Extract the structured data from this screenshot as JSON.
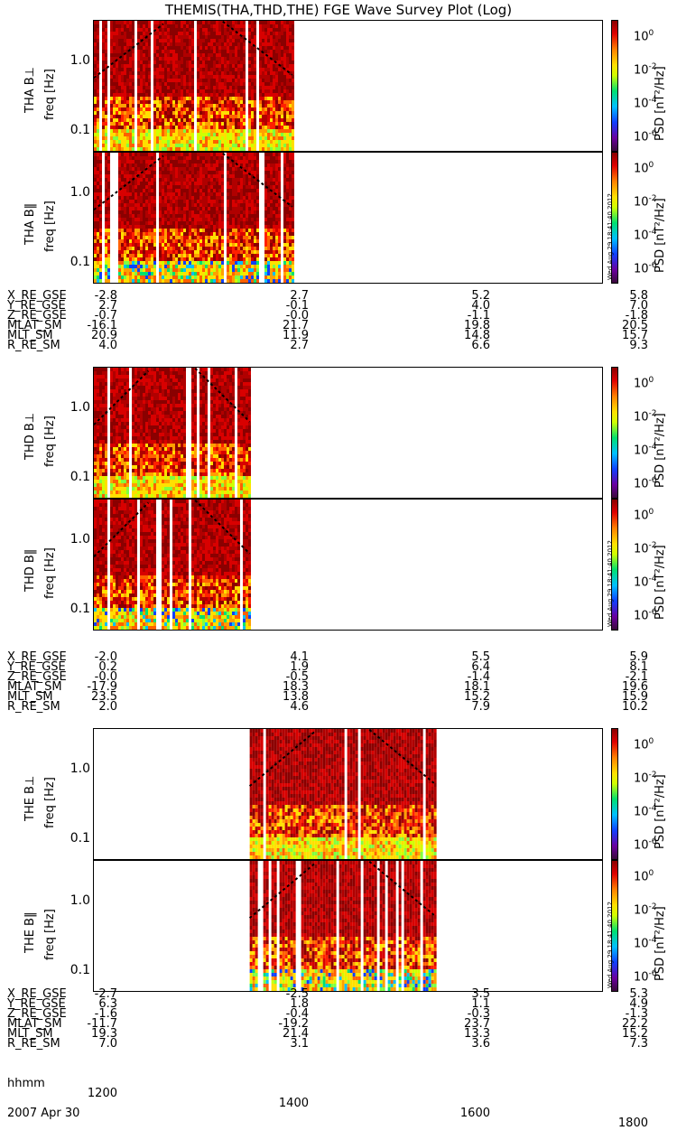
{
  "title": "THEMIS(THA,THD,THE) FGE Wave Survey Plot (Log)",
  "colorbar": {
    "label": "PSD [nT²/Hz]",
    "ticks": [
      "10^0",
      "10^-2",
      "10^-4",
      "10^-6"
    ],
    "colors": [
      "#3a0a3a",
      "#6a00a0",
      "#1040ff",
      "#00c0ff",
      "#00e070",
      "#d0ff00",
      "#ffe000",
      "#ff8000",
      "#e00000",
      "#8a0000"
    ]
  },
  "timestamp": "Wed Aug 29 18:41:40 2012",
  "freq_ticks": [
    "1.0",
    "0.1"
  ],
  "ephem_labels": [
    "X_RE_GSE",
    "Y_RE_GSE",
    "Z_RE_GSE",
    "MLAT_SM",
    "MLT_SM",
    "R_RE_SM"
  ],
  "chart_data": [
    {
      "type": "heatmap",
      "probe": "THA",
      "ylabel_perp": "THA B⊥",
      "ylabel_par": "THA B‖",
      "yunit": "freq [Hz]",
      "yscale": "log",
      "ylim_hz": [
        0.05,
        4.0
      ],
      "xlim_hhmm": [
        "1200",
        "1800"
      ],
      "data_intervals_hhmm": [
        [
          "1200",
          "1420"
        ]
      ],
      "ephemeris": {
        "X_RE_GSE": [
          "-2.8",
          "2.7",
          "5.2",
          "5.8"
        ],
        "Y_RE_GSE": [
          "2.7",
          "-0.1",
          "4.0",
          "7.0"
        ],
        "Z_RE_GSE": [
          "-0.7",
          "-0.0",
          "-1.1",
          "-1.8"
        ],
        "MLAT_SM": [
          "-16.1",
          "21.7",
          "19.8",
          "20.5"
        ],
        "MLT_SM": [
          "20.9",
          "11.9",
          "14.8",
          "15.7"
        ],
        "R_RE_SM": [
          "4.0",
          "2.7",
          "6.6",
          "9.3"
        ]
      }
    },
    {
      "type": "heatmap",
      "probe": "THD",
      "ylabel_perp": "THD B⊥",
      "ylabel_par": "THD B‖",
      "yunit": "freq [Hz]",
      "yscale": "log",
      "ylim_hz": [
        0.05,
        4.0
      ],
      "xlim_hhmm": [
        "1200",
        "1800"
      ],
      "data_intervals_hhmm": [
        [
          "1200",
          "1350"
        ]
      ],
      "ephemeris": {
        "X_RE_GSE": [
          "-2.0",
          "4.1",
          "5.5",
          "5.9"
        ],
        "Y_RE_GSE": [
          "0.2",
          "1.9",
          "6.4",
          "8.1"
        ],
        "Z_RE_GSE": [
          "-0.0",
          "-0.5",
          "-1.4",
          "-2.1"
        ],
        "MLAT_SM": [
          "-17.9",
          "18.3",
          "18.1",
          "19.6"
        ],
        "MLT_SM": [
          "23.5",
          "13.8",
          "15.2",
          "15.9"
        ],
        "R_RE_SM": [
          "2.0",
          "4.6",
          "7.9",
          "10.2"
        ]
      }
    },
    {
      "type": "heatmap",
      "probe": "THE",
      "ylabel_perp": "THE B⊥",
      "ylabel_par": "THE B‖",
      "yunit": "freq [Hz]",
      "yscale": "log",
      "ylim_hz": [
        0.05,
        4.0
      ],
      "xlim_hhmm": [
        "1200",
        "1800"
      ],
      "data_intervals_hhmm": [
        [
          "1350",
          "1600"
        ]
      ],
      "ephemeris": {
        "X_RE_GSE": [
          "-2.7",
          "-2.5",
          "3.5",
          "5.3"
        ],
        "Y_RE_GSE": [
          "6.3",
          "1.8",
          "1.1",
          "4.9"
        ],
        "Z_RE_GSE": [
          "-1.6",
          "-0.4",
          "-0.3",
          "-1.3"
        ],
        "MLAT_SM": [
          "-11.7",
          "-19.2",
          "23.7",
          "22.2"
        ],
        "MLT_SM": [
          "19.3",
          "21.4",
          "13.3",
          "15.2"
        ],
        "R_RE_SM": [
          "7.0",
          "3.1",
          "3.6",
          "7.3"
        ]
      }
    }
  ],
  "time_axis": {
    "label": "hhmm",
    "ticks": [
      "1200",
      "1400",
      "1600",
      "1800"
    ],
    "date": "2007 Apr 30"
  }
}
